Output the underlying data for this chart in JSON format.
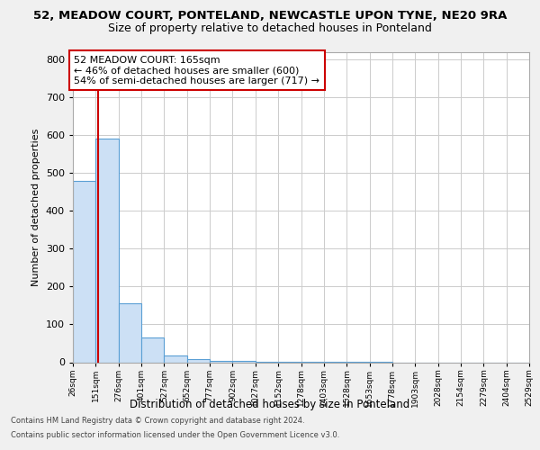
{
  "title1": "52, MEADOW COURT, PONTELAND, NEWCASTLE UPON TYNE, NE20 9RA",
  "title2": "Size of property relative to detached houses in Ponteland",
  "xlabel": "Distribution of detached houses by size in Ponteland",
  "ylabel": "Number of detached properties",
  "bin_edges": [
    26,
    151,
    276,
    401,
    527,
    652,
    777,
    902,
    1027,
    1152,
    1278,
    1403,
    1528,
    1653,
    1778,
    1903,
    2028,
    2154,
    2279,
    2404,
    2529
  ],
  "counts": [
    480,
    590,
    155,
    65,
    18,
    8,
    4,
    3,
    2,
    2,
    1,
    1,
    1,
    1,
    0,
    0,
    0,
    0,
    0,
    0
  ],
  "bar_color": "#cce0f5",
  "bar_edge_color": "#5a9fd4",
  "property_line_x": 165,
  "property_line_color": "#cc0000",
  "annotation_line1": "52 MEADOW COURT: 165sqm",
  "annotation_line2": "← 46% of detached houses are smaller (600)",
  "annotation_line3": "54% of semi-detached houses are larger (717) →",
  "annotation_box_color": "#ffffff",
  "annotation_box_edge": "#cc0000",
  "ylim": [
    0,
    820
  ],
  "yticks": [
    0,
    100,
    200,
    300,
    400,
    500,
    600,
    700,
    800
  ],
  "footer1": "Contains HM Land Registry data © Crown copyright and database right 2024.",
  "footer2": "Contains public sector information licensed under the Open Government Licence v3.0.",
  "bg_color": "#f0f0f0",
  "plot_bg_color": "#ffffff"
}
